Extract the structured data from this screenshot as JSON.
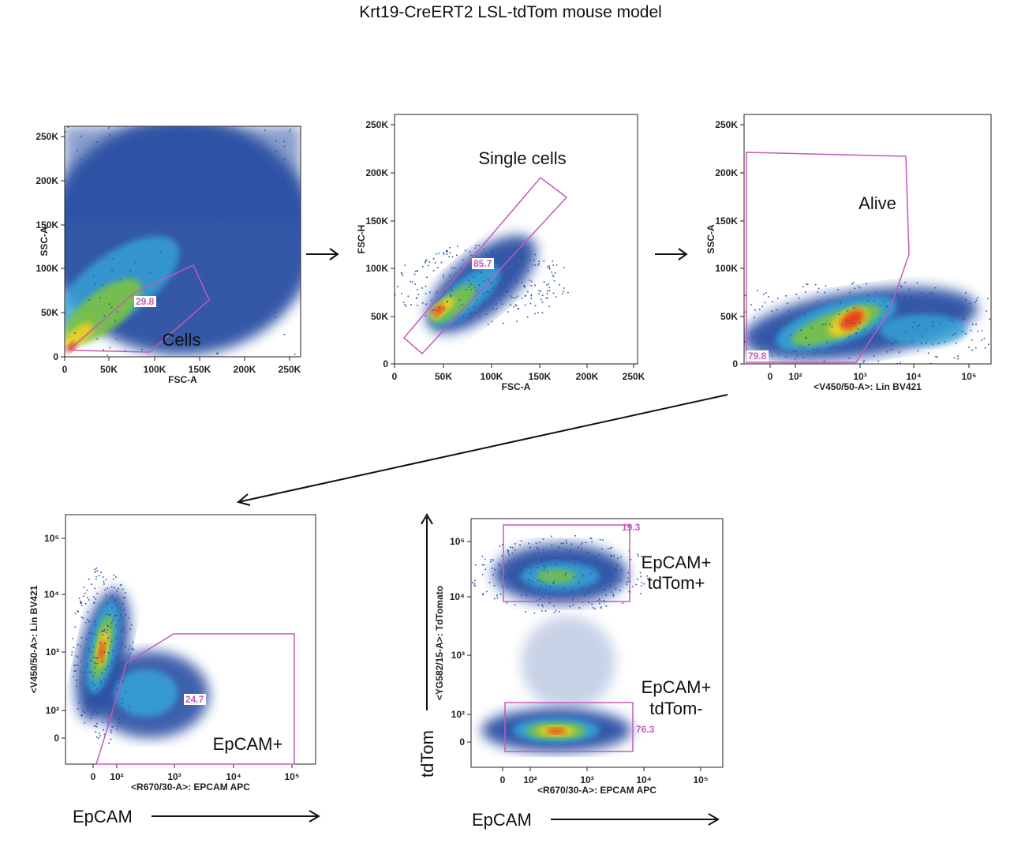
{
  "title": "Krt19-CreERT2 LSL-tdTom mouse model",
  "colors": {
    "gate": "#c45ab8",
    "density": [
      "#2c4fa3",
      "#36a4d8",
      "#7cc242",
      "#f2d020",
      "#e8321e"
    ]
  },
  "chart_data": [
    {
      "type": "scatter",
      "subtype": "flow-cytometry-density",
      "xlabel": "FSC-A",
      "ylabel": "SSC-A",
      "xticks": [
        "0",
        "50K",
        "100K",
        "150K",
        "200K",
        "250K"
      ],
      "yticks": [
        "0",
        "50K",
        "100K",
        "150K",
        "200K",
        "250K"
      ],
      "xlim": [
        0,
        262144
      ],
      "ylim": [
        0,
        262144
      ],
      "gate": {
        "name": "Cells",
        "percent": "29.8"
      }
    },
    {
      "type": "scatter",
      "subtype": "flow-cytometry-density",
      "xlabel": "FSC-A",
      "ylabel": "FSC-H",
      "xticks": [
        "0",
        "50K",
        "100K",
        "150K",
        "200K",
        "250K"
      ],
      "yticks": [
        "0",
        "50K",
        "100K",
        "150K",
        "200K",
        "250K"
      ],
      "xlim": [
        0,
        262144
      ],
      "ylim": [
        0,
        262144
      ],
      "gate": {
        "name": "Single cells",
        "percent": "85.7"
      }
    },
    {
      "type": "scatter",
      "subtype": "flow-cytometry-density",
      "xlabel": "<V450/50-A>: Lin BV421",
      "ylabel": "SSC-A",
      "xscale": "biexponential",
      "xticks": [
        "0",
        "10²",
        "10³",
        "10⁴",
        "10⁵"
      ],
      "yticks": [
        "0",
        "50K",
        "100K",
        "150K",
        "200K",
        "250K"
      ],
      "ylim": [
        0,
        262144
      ],
      "gate": {
        "name": "Alive",
        "percent": "79.8"
      }
    },
    {
      "type": "scatter",
      "subtype": "flow-cytometry-density",
      "xlabel": "<R670/30-A>: EPCAM APC",
      "ylabel": "<V450/50-A>: Lin BV421",
      "xscale": "biexponential",
      "yscale": "biexponential",
      "xticks": [
        "0",
        "10²",
        "10³",
        "10⁴",
        "10⁵"
      ],
      "yticks": [
        "0",
        "10²",
        "10³",
        "10⁴",
        "10⁵"
      ],
      "gate": {
        "name": "EpCAM+",
        "percent": "24.7"
      },
      "outer_xlabel": "EpCAM"
    },
    {
      "type": "scatter",
      "subtype": "flow-cytometry-density",
      "xlabel": "<R670/30-A>: EPCAM APC",
      "ylabel": "<YG582/15-A>: TdTomato",
      "xscale": "biexponential",
      "yscale": "biexponential",
      "xticks": [
        "0",
        "10²",
        "10³",
        "10⁴",
        "10⁵"
      ],
      "yticks": [
        "0",
        "10²",
        "10³",
        "10⁴",
        "10⁵"
      ],
      "gates": [
        {
          "name_line1": "EpCAM+",
          "name_line2": "tdTom+",
          "percent": "19.3"
        },
        {
          "name_line1": "EpCAM+",
          "name_line2": "tdTom-",
          "percent": "76.3"
        }
      ],
      "outer_xlabel": "EpCAM",
      "outer_ylabel": "tdTom"
    }
  ]
}
